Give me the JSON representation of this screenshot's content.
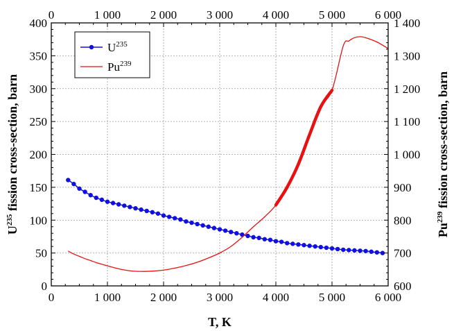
{
  "chart_data": {
    "type": "line",
    "xlabel": "T, K",
    "ylabel_left": {
      "base": "U",
      "sup": "235",
      "rest": " fission cross-section, barn"
    },
    "ylabel_right": {
      "base": "Pu",
      "sup": "239",
      "rest": " fission cross-section, barn"
    },
    "xlim": [
      0,
      6000
    ],
    "ylim_left": [
      0,
      400
    ],
    "ylim_right": [
      600,
      1400
    ],
    "x_ticks": [
      0,
      1000,
      2000,
      3000,
      4000,
      5000,
      6000
    ],
    "x_tick_labels": [
      "0",
      "1 000",
      "2 000",
      "3 000",
      "4 000",
      "5 000",
      "6 000"
    ],
    "y_left_ticks": [
      0,
      50,
      100,
      150,
      200,
      250,
      300,
      350,
      400
    ],
    "y_left_tick_labels": [
      "0",
      "50",
      "100",
      "150",
      "200",
      "250",
      "300",
      "350",
      "400"
    ],
    "y_right_ticks": [
      600,
      700,
      800,
      900,
      1000,
      1100,
      1200,
      1300,
      1400
    ],
    "y_right_tick_labels": [
      "600",
      "700",
      "800",
      "900",
      "1 000",
      "1 100",
      "1 200",
      "1 300",
      "1 400"
    ],
    "grid": true,
    "legend_position": "top-left",
    "series": [
      {
        "name": "U235",
        "legend_base": "U",
        "legend_sup": "235",
        "axis": "left",
        "color": "#1010e0",
        "marker": "circle",
        "x": [
          300,
          400,
          500,
          600,
          700,
          800,
          900,
          1000,
          1100,
          1200,
          1300,
          1400,
          1500,
          1600,
          1700,
          1800,
          1900,
          2000,
          2100,
          2200,
          2300,
          2400,
          2500,
          2600,
          2700,
          2800,
          2900,
          3000,
          3100,
          3200,
          3300,
          3400,
          3500,
          3600,
          3700,
          3800,
          3900,
          4000,
          4100,
          4200,
          4300,
          4400,
          4500,
          4600,
          4700,
          4800,
          4900,
          5000,
          5100,
          5200,
          5300,
          5400,
          5500,
          5600,
          5700,
          5800,
          5900
        ],
        "y": [
          161,
          155,
          148,
          143,
          138,
          134,
          131,
          128,
          126,
          124,
          122,
          120,
          118,
          116,
          114,
          112,
          110,
          107,
          105,
          103,
          101,
          98,
          96,
          94,
          92,
          90,
          88,
          86,
          84,
          82,
          80,
          78,
          76,
          74,
          73,
          71,
          70,
          68,
          67,
          65,
          64,
          63,
          62,
          61,
          60,
          59,
          58,
          57,
          56,
          55,
          54.5,
          54,
          53.5,
          53,
          52,
          51,
          50
        ]
      },
      {
        "name": "Pu239",
        "legend_base": "Pu",
        "legend_sup": "239",
        "axis": "right",
        "color": "#e81010",
        "x": [
          300,
          400,
          500,
          600,
          700,
          800,
          900,
          1000,
          1200,
          1400,
          1600,
          1800,
          2000,
          2200,
          2400,
          2600,
          2800,
          3000,
          3200,
          3400,
          3600,
          3800,
          4000,
          4200,
          4400,
          4600,
          4800,
          5000,
          5200,
          5300,
          5400,
          5500,
          5600,
          5800,
          6000
        ],
        "y": [
          706,
          697,
          690,
          683,
          677,
          671,
          666,
          661,
          652,
          646,
          644,
          645,
          648,
          654,
          662,
          672,
          685,
          700,
          720,
          748,
          780,
          810,
          846,
          900,
          970,
          1060,
          1145,
          1195,
          1330,
          1345,
          1355,
          1358,
          1355,
          1342,
          1322
        ],
        "thick_range": [
          4000,
          5000
        ]
      }
    ]
  }
}
